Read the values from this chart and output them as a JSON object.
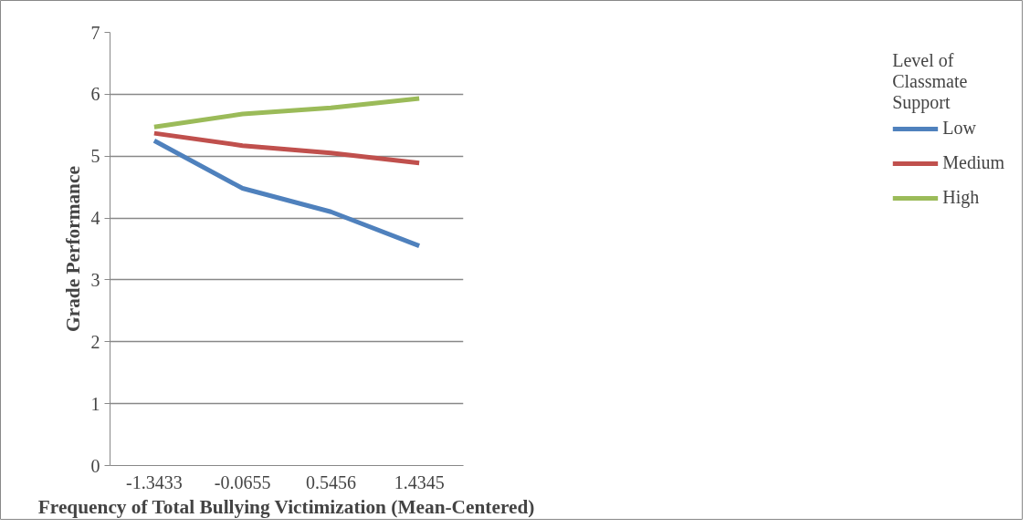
{
  "chart_data": {
    "type": "line",
    "xlabel": "Frequency of Total Bullying Victimization (Mean-Centered)",
    "ylabel": "Grade Performance",
    "legend_title": "Level of Classmate Support",
    "categories": [
      "-1.3433",
      "-0.0655",
      "0.5456",
      "1.4345"
    ],
    "series": [
      {
        "name": "Low",
        "color": "#4f81bd",
        "values": [
          5.25,
          4.48,
          4.1,
          3.55
        ]
      },
      {
        "name": "Medium",
        "color": "#c0504d",
        "values": [
          5.37,
          5.17,
          5.05,
          4.89
        ]
      },
      {
        "name": "High",
        "color": "#9bbb59",
        "values": [
          5.47,
          5.68,
          5.78,
          5.93
        ]
      }
    ],
    "ylim": [
      0,
      7
    ],
    "yticks": [
      0,
      1,
      2,
      3,
      4,
      5,
      6,
      7
    ],
    "grid": "y",
    "legend": "right",
    "marker": "none",
    "line_style": "solid"
  }
}
